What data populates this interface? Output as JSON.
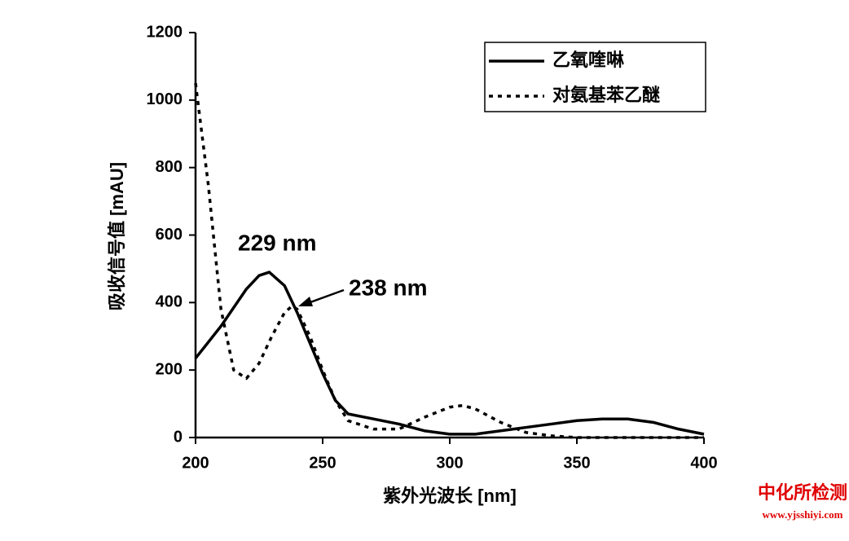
{
  "chart_data": {
    "type": "line",
    "xlabel": "紫外光波长 [nm]",
    "ylabel": "吸收信号值 [mAU]",
    "xlim": [
      200,
      400
    ],
    "xticks": [
      200,
      250,
      300,
      350,
      400
    ],
    "ylim": [
      0,
      1200
    ],
    "yticks": [
      0,
      200,
      400,
      600,
      800,
      1000,
      1200
    ],
    "legend": "upper right",
    "series": [
      {
        "name": "乙氧喹啉",
        "color": "#000000",
        "style": "solid",
        "x": [
          200,
          210,
          220,
          225,
          229,
          235,
          240,
          245,
          250,
          255,
          260,
          270,
          280,
          290,
          300,
          310,
          320,
          330,
          340,
          350,
          360,
          370,
          380,
          390,
          400
        ],
        "values": [
          235,
          330,
          440,
          480,
          490,
          450,
          370,
          280,
          190,
          110,
          70,
          55,
          40,
          20,
          10,
          10,
          20,
          30,
          40,
          50,
          55,
          55,
          45,
          25,
          10
        ]
      },
      {
        "name": "对氨基苯乙醚",
        "color": "#000000",
        "style": "dotted",
        "x": [
          200,
          205,
          210,
          215,
          220,
          225,
          230,
          235,
          238,
          240,
          245,
          250,
          255,
          260,
          270,
          280,
          290,
          300,
          305,
          310,
          320,
          330,
          340,
          350,
          400
        ],
        "values": [
          1050,
          750,
          380,
          200,
          175,
          220,
          300,
          370,
          390,
          380,
          300,
          200,
          110,
          50,
          25,
          25,
          60,
          90,
          95,
          85,
          45,
          15,
          5,
          0,
          0
        ]
      }
    ],
    "annotations": [
      "229 nm",
      "238 nm"
    ]
  },
  "watermark": {
    "title": "中化所检测",
    "url": "www.yjsshiyi.com"
  }
}
